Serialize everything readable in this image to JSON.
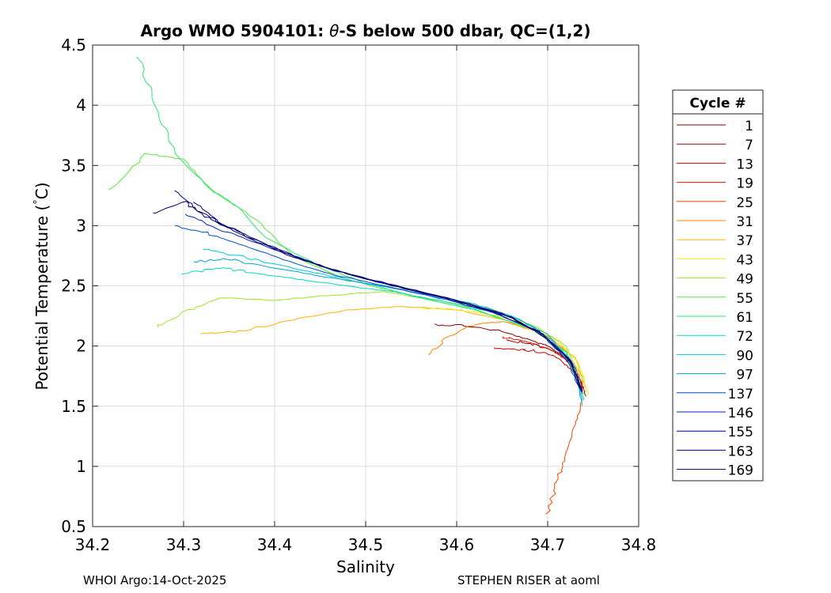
{
  "chart_data": {
    "type": "line",
    "title_prefix": "Argo WMO 5904101: ",
    "title_symbol": "θ",
    "title_suffix": "-S below 500 dbar,  QC=(1,2)",
    "xlabel": "Salinity",
    "ylabel_main": "Potential Temperature (",
    "ylabel_degree": "°",
    "ylabel_unit": "C)",
    "xlim": [
      34.2,
      34.8
    ],
    "ylim": [
      0.5,
      4.5
    ],
    "xticks": [
      "34.2",
      "34.3",
      "34.4",
      "34.5",
      "34.6",
      "34.7",
      "34.8"
    ],
    "yticks": [
      "0.5",
      "1",
      "1.5",
      "2",
      "2.5",
      "3",
      "3.5",
      "4",
      "4.5"
    ],
    "grid": true,
    "legend": {
      "title": "Cycle #",
      "placement": "outside-right",
      "entries": [
        {
          "label": "1",
          "color": "#800000"
        },
        {
          "label": "7",
          "color": "#a00000"
        },
        {
          "label": "13",
          "color": "#c80000"
        },
        {
          "label": "19",
          "color": "#e61400"
        },
        {
          "label": "25",
          "color": "#ff4000"
        },
        {
          "label": "31",
          "color": "#ff8000"
        },
        {
          "label": "37",
          "color": "#ffb400"
        },
        {
          "label": "43",
          "color": "#f5f000"
        },
        {
          "label": "49",
          "color": "#9ce622"
        },
        {
          "label": "55",
          "color": "#5ae63c"
        },
        {
          "label": "61",
          "color": "#28e678"
        },
        {
          "label": "72",
          "color": "#00dcb4"
        },
        {
          "label": "90",
          "color": "#00c8dc"
        },
        {
          "label": "97",
          "color": "#00a0d0"
        },
        {
          "label": "137",
          "color": "#0050c8"
        },
        {
          "label": "146",
          "color": "#0028b4"
        },
        {
          "label": "155",
          "color": "#000096"
        },
        {
          "label": "163",
          "color": "#00007a"
        },
        {
          "label": "169",
          "color": "#000064"
        }
      ]
    },
    "series": [
      {
        "name": "1",
        "color": "#800000",
        "x": [
          34.575,
          34.61,
          34.65,
          34.68,
          34.7,
          34.715,
          34.73,
          34.74
        ],
        "y": [
          2.18,
          2.17,
          2.12,
          2.05,
          2.0,
          1.93,
          1.82,
          1.65
        ]
      },
      {
        "name": "7",
        "color": "#a00000",
        "x": [
          34.655,
          34.68,
          34.7,
          34.715,
          34.728,
          34.738
        ],
        "y": [
          2.05,
          2.02,
          1.98,
          1.92,
          1.82,
          1.68
        ]
      },
      {
        "name": "13",
        "color": "#c80000",
        "x": [
          34.64,
          34.67,
          34.695,
          34.712,
          34.726,
          34.737,
          34.742
        ],
        "y": [
          1.98,
          1.97,
          1.95,
          1.9,
          1.8,
          1.68,
          1.58
        ]
      },
      {
        "name": "19",
        "color": "#e61400",
        "x": [
          34.65,
          34.675,
          34.7,
          34.718,
          34.732,
          34.741
        ],
        "y": [
          2.08,
          2.04,
          1.98,
          1.9,
          1.8,
          1.62
        ]
      },
      {
        "name": "25",
        "color": "#ff4000",
        "x": [
          34.7,
          34.708,
          34.716,
          34.724,
          34.732,
          34.738
        ],
        "y": [
          0.6,
          0.8,
          1.0,
          1.2,
          1.4,
          1.55
        ]
      },
      {
        "name": "31",
        "color": "#ff8000",
        "x": [
          34.57,
          34.59,
          34.62,
          34.65,
          34.68,
          34.7,
          34.72,
          34.735
        ],
        "y": [
          1.92,
          2.08,
          2.18,
          2.2,
          2.15,
          2.08,
          1.95,
          1.75
        ]
      },
      {
        "name": "37",
        "color": "#ffb400",
        "x": [
          34.32,
          34.36,
          34.42,
          34.48,
          34.54,
          34.6,
          34.65,
          34.7,
          34.73,
          34.742
        ],
        "y": [
          2.1,
          2.12,
          2.22,
          2.3,
          2.33,
          2.3,
          2.22,
          2.08,
          1.9,
          1.65
        ]
      },
      {
        "name": "43",
        "color": "#f5f000",
        "x": [
          34.56,
          34.6,
          34.64,
          34.68,
          34.71,
          34.735,
          34.745
        ],
        "y": [
          2.32,
          2.3,
          2.26,
          2.18,
          2.05,
          1.85,
          1.6
        ]
      },
      {
        "name": "49",
        "color": "#9ce622",
        "x": [
          34.27,
          34.3,
          34.34,
          34.4,
          34.46,
          34.52,
          34.58,
          34.64,
          34.69,
          34.72,
          34.74
        ],
        "y": [
          2.15,
          2.28,
          2.4,
          2.38,
          2.42,
          2.45,
          2.38,
          2.3,
          2.15,
          2.0,
          1.7
        ]
      },
      {
        "name": "55",
        "color": "#5ae63c",
        "x": [
          34.22,
          34.26,
          34.3,
          34.33,
          34.38,
          34.42,
          34.48,
          34.55,
          34.62,
          34.68,
          34.72,
          34.74
        ],
        "y": [
          3.3,
          3.6,
          3.55,
          3.3,
          3.05,
          2.75,
          2.55,
          2.42,
          2.3,
          2.15,
          1.95,
          1.6
        ]
      },
      {
        "name": "61",
        "color": "#28e678",
        "x": [
          34.25,
          34.27,
          34.29,
          34.33,
          34.36,
          34.39,
          34.44,
          34.5,
          34.56,
          34.62,
          34.68,
          34.72,
          34.738
        ],
        "y": [
          4.4,
          4.0,
          3.6,
          3.3,
          3.15,
          2.9,
          2.7,
          2.52,
          2.4,
          2.3,
          2.15,
          1.95,
          1.6
        ]
      },
      {
        "name": "72",
        "color": "#00dcb4",
        "x": [
          34.3,
          34.34,
          34.38,
          34.43,
          34.48,
          34.53,
          34.58,
          34.64,
          34.69,
          34.725,
          34.74
        ],
        "y": [
          2.6,
          2.65,
          2.6,
          2.55,
          2.5,
          2.45,
          2.38,
          2.28,
          2.12,
          1.9,
          1.55
        ]
      },
      {
        "name": "90",
        "color": "#00c8dc",
        "x": [
          34.32,
          34.36,
          34.4,
          34.45,
          34.5,
          34.55,
          34.61,
          34.66,
          34.7,
          34.728,
          34.738
        ],
        "y": [
          2.8,
          2.75,
          2.68,
          2.6,
          2.52,
          2.45,
          2.36,
          2.25,
          2.1,
          1.85,
          1.5
        ]
      },
      {
        "name": "97",
        "color": "#00a0d0",
        "x": [
          34.31,
          34.35,
          34.4,
          34.45,
          34.5,
          34.56,
          34.62,
          34.67,
          34.705,
          34.73,
          34.738
        ],
        "y": [
          2.7,
          2.72,
          2.65,
          2.58,
          2.52,
          2.44,
          2.35,
          2.22,
          2.05,
          1.82,
          1.55
        ]
      },
      {
        "name": "137",
        "color": "#0050c8",
        "x": [
          34.29,
          34.32,
          34.36,
          34.41,
          34.46,
          34.52,
          34.58,
          34.64,
          34.69,
          34.72,
          34.738
        ],
        "y": [
          3.0,
          2.95,
          2.85,
          2.72,
          2.6,
          2.5,
          2.4,
          2.28,
          2.12,
          1.9,
          1.6
        ]
      },
      {
        "name": "146",
        "color": "#0028b4",
        "x": [
          34.3,
          34.33,
          34.37,
          34.42,
          34.47,
          34.53,
          34.59,
          34.65,
          34.695,
          34.725,
          34.738
        ],
        "y": [
          3.1,
          3.0,
          2.88,
          2.75,
          2.62,
          2.5,
          2.4,
          2.27,
          2.1,
          1.88,
          1.62
        ]
      },
      {
        "name": "155",
        "color": "#000096",
        "x": [
          34.29,
          34.32,
          34.36,
          34.41,
          34.46,
          34.52,
          34.58,
          34.64,
          34.69,
          34.722,
          34.738
        ],
        "y": [
          3.3,
          3.1,
          2.95,
          2.78,
          2.64,
          2.52,
          2.41,
          2.28,
          2.12,
          1.9,
          1.62
        ]
      },
      {
        "name": "163",
        "color": "#00007a",
        "x": [
          34.31,
          34.34,
          34.38,
          34.43,
          34.48,
          34.54,
          34.6,
          34.66,
          34.7,
          34.726,
          34.738
        ],
        "y": [
          3.2,
          3.02,
          2.88,
          2.72,
          2.6,
          2.49,
          2.38,
          2.24,
          2.06,
          1.85,
          1.62
        ]
      },
      {
        "name": "169",
        "color": "#000064",
        "x": [
          34.265,
          34.3,
          34.33,
          34.37,
          34.42,
          34.47,
          34.53,
          34.59,
          34.65,
          34.695,
          34.725,
          34.738
        ],
        "y": [
          3.1,
          3.2,
          3.05,
          2.9,
          2.74,
          2.62,
          2.5,
          2.4,
          2.27,
          2.1,
          1.88,
          1.62
        ]
      }
    ]
  },
  "footer": {
    "left": "WHOI Argo:14-Oct-2025",
    "right": "STEPHEN RISER at aoml"
  }
}
